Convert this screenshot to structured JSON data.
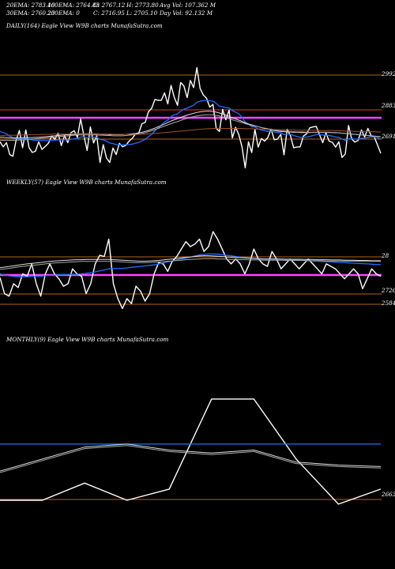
{
  "header": {
    "ema20": "20EMA: 2783.46",
    "ema100": "100EMA: 2764.83",
    "open": "O: 2767.12",
    "high": "H: 2773.80",
    "avgvol": "Avg Vol: 107.362  M",
    "ema30": "30EMA: 2760.23",
    "ema200": "200EMA: 0",
    "close": "C: 2716.95",
    "low": "L: 2705.10",
    "dayvol": "Day Vol: 92.132  M"
  },
  "chart_data": [
    {
      "type": "line",
      "label": "DAILY(164) Eagle   View  W9B charts MunafaSutra.com",
      "ticks": [
        "2992",
        "2883",
        "2691"
      ],
      "series": [
        {
          "name": "price",
          "color": "#ffffff",
          "values": [
            2755,
            2738,
            2752,
            2712,
            2706,
            2760,
            2793,
            2735,
            2795,
            2735,
            2719,
            2723,
            2755,
            2729,
            2739,
            2750,
            2774,
            2763,
            2784,
            2742,
            2776,
            2752,
            2786,
            2792,
            2770,
            2832,
            2775,
            2726,
            2805,
            2751,
            2775,
            2685,
            2745,
            2700,
            2685,
            2734,
            2712,
            2750,
            2738,
            2743,
            2757,
            2767,
            2781,
            2784,
            2816,
            2820,
            2856,
            2868,
            2898,
            2895,
            2895,
            2920,
            2883,
            2945,
            2905,
            2878,
            2955,
            2943,
            2904,
            2962,
            2938,
            3005,
            2935,
            2913,
            2902,
            2872,
            2881,
            2800,
            2790,
            2864,
            2829,
            2862,
            2768,
            2804,
            2779,
            2737,
            2667,
            2755,
            2719,
            2797,
            2737,
            2766,
            2757,
            2769,
            2798,
            2762,
            2764,
            2780,
            2711,
            2797,
            2776,
            2735,
            2737,
            2738,
            2774,
            2782,
            2802,
            2805,
            2807,
            2779,
            2752,
            2785,
            2757,
            2753,
            2737,
            2755,
            2702,
            2714,
            2810,
            2764,
            2754,
            2760,
            2795,
            2771,
            2800,
            2776,
            2771,
            2744,
            2716
          ]
        },
        {
          "name": "ema-blue",
          "color": "#1f6fff",
          "values": [
            2790,
            2786,
            2782,
            2775,
            2768,
            2766,
            2767,
            2764,
            2766,
            2764,
            2761,
            2760,
            2760,
            2759,
            2759,
            2759,
            2760,
            2760,
            2762,
            2761,
            2762,
            2761,
            2763,
            2765,
            2766,
            2771,
            2771,
            2768,
            2771,
            2770,
            2770,
            2763,
            2762,
            2757,
            2751,
            2749,
            2745,
            2745,
            2745,
            2745,
            2746,
            2747,
            2750,
            2753,
            2758,
            2763,
            2772,
            2780,
            2792,
            2802,
            2811,
            2822,
            2828,
            2840,
            2846,
            2849,
            2858,
            2865,
            2868,
            2874,
            2878,
            2888,
            2892,
            2894,
            2895,
            2893,
            2892,
            2884,
            2875,
            2874,
            2870,
            2869,
            2860,
            2855,
            2849,
            2838,
            2821,
            2815,
            2806,
            2805,
            2798,
            2795,
            2792,
            2790,
            2791,
            2788,
            2786,
            2786,
            2779,
            2781,
            2780,
            2776,
            2773,
            2770,
            2770,
            2771,
            2773,
            2776,
            2779,
            2779,
            2777,
            2778,
            2776,
            2774,
            2771,
            2770,
            2764,
            2760,
            2765,
            2765,
            2764,
            2764,
            2767,
            2767,
            2770,
            2771,
            2771,
            2769,
            2764
          ]
        },
        {
          "name": "ema-white-1",
          "color": "#dddddd",
          "values": [
            2770,
            2770,
            2769,
            2769,
            2768,
            2768,
            2768,
            2768,
            2768,
            2769,
            2769,
            2770,
            2770,
            2771,
            2772,
            2773,
            2774,
            2775,
            2776,
            2777,
            2778,
            2779,
            2779,
            2780,
            2781,
            2782,
            2782,
            2782,
            2782,
            2782,
            2781,
            2781,
            2780,
            2780,
            2779,
            2779,
            2779,
            2779,
            2779,
            2780,
            2781,
            2782,
            2783,
            2785,
            2787,
            2790,
            2793,
            2797,
            2801,
            2806,
            2810,
            2815,
            2820,
            2825,
            2829,
            2833,
            2837,
            2841,
            2845,
            2848,
            2851,
            2854,
            2856,
            2857,
            2858,
            2858,
            2857,
            2855,
            2852,
            2849,
            2845,
            2841,
            2836,
            2832,
            2828,
            2824,
            2819,
            2815,
            2812,
            2809,
            2806,
            2803,
            2800,
            2797,
            2795,
            2793,
            2791,
            2790,
            2789,
            2788,
            2788,
            2787,
            2787,
            2786,
            2786,
            2786,
            2786,
            2787,
            2787,
            2787,
            2787,
            2787,
            2787,
            2786,
            2786,
            2785,
            2784,
            2783,
            2782,
            2781,
            2780,
            2779,
            2778,
            2777,
            2776,
            2775,
            2774,
            2773,
            2772
          ]
        },
        {
          "name": "ema-white-2",
          "color": "#aaaaaa",
          "values": [
            2760,
            2760,
            2760,
            2760,
            2760,
            2760,
            2761,
            2761,
            2762,
            2763,
            2764,
            2765,
            2766,
            2767,
            2768,
            2769,
            2770,
            2771,
            2772,
            2773,
            2774,
            2775,
            2776,
            2777,
            2778,
            2778,
            2778,
            2778,
            2778,
            2778,
            2778,
            2777,
            2777,
            2776,
            2776,
            2775,
            2775,
            2775,
            2775,
            2776,
            2777,
            2778,
            2779,
            2781,
            2783,
            2786,
            2789,
            2792,
            2796,
            2800,
            2804,
            2808,
            2812,
            2816,
            2820,
            2823,
            2827,
            2831,
            2834,
            2837,
            2840,
            2842,
            2844,
            2845,
            2846,
            2846,
            2846,
            2844,
            2842,
            2839,
            2836,
            2833,
            2829,
            2826,
            2823,
            2820,
            2816,
            2813,
            2810,
            2808,
            2806,
            2803,
            2801,
            2799,
            2797,
            2795,
            2793,
            2792,
            2791,
            2790,
            2789,
            2789,
            2788,
            2788,
            2788,
            2787,
            2787,
            2787,
            2787,
            2787,
            2787,
            2787,
            2786,
            2786,
            2785,
            2785,
            2784,
            2783,
            2782,
            2781,
            2780,
            2779,
            2778,
            2777,
            2776,
            2775,
            2774,
            2773,
            2772
          ]
        },
        {
          "name": "ema-brown",
          "color": "#a0522d",
          "values": [
            2775,
            2776,
            2777,
            2777,
            2777,
            2777,
            2778,
            2778,
            2778,
            2779,
            2779,
            2779,
            2779,
            2780,
            2780,
            2780,
            2780,
            2781,
            2781,
            2781,
            2781,
            2781,
            2782,
            2782,
            2782,
            2782,
            2782,
            2782,
            2782,
            2782,
            2782,
            2781,
            2781,
            2781,
            2781,
            2780,
            2780,
            2780,
            2780,
            2780,
            2780,
            2780,
            2780,
            2780,
            2781,
            2781,
            2782,
            2782,
            2783,
            2784,
            2785,
            2786,
            2787,
            2788,
            2789,
            2790,
            2791,
            2792,
            2793,
            2794,
            2795,
            2796,
            2797,
            2798,
            2799,
            2799,
            2800,
            2800,
            2800,
            2800,
            2800,
            2800,
            2800,
            2800,
            2800,
            2800,
            2799,
            2799,
            2799,
            2798,
            2798,
            2798,
            2797,
            2797,
            2797,
            2796,
            2796,
            2796,
            2795,
            2795,
            2795,
            2795,
            2794,
            2794,
            2794,
            2794,
            2794,
            2794,
            2794,
            2793,
            2793,
            2793,
            2793,
            2793,
            2792,
            2792,
            2792,
            2791,
            2791,
            2791,
            2790,
            2790,
            2790,
            2790,
            2789,
            2789,
            2789,
            2788,
            2788
          ]
        }
      ]
    },
    {
      "type": "line",
      "label": "WEEKLY(57) Eagle   View  W9B charts MunafaSutra.com",
      "ticks": [
        "28",
        "2726",
        "2584"
      ],
      "series": [
        {
          "name": "price",
          "color": "#ffffff",
          "values": [
            2685,
            2620,
            2610,
            2660,
            2645,
            2700,
            2690,
            2740,
            2660,
            2610,
            2700,
            2740,
            2700,
            2680,
            2650,
            2660,
            2720,
            2700,
            2690,
            2620,
            2660,
            2740,
            2775,
            2770,
            2840,
            2660,
            2600,
            2560,
            2600,
            2580,
            2650,
            2630,
            2590,
            2620,
            2700,
            2745,
            2740,
            2710,
            2750,
            2770,
            2800,
            2830,
            2810,
            2820,
            2840,
            2790,
            2810,
            2870,
            2840,
            2800,
            2760,
            2740,
            2760,
            2740,
            2700,
            2740,
            2800,
            2760,
            2740,
            2730,
            2790,
            2760,
            2720,
            2740,
            2760,
            2740,
            2720,
            2740,
            2760,
            2740,
            2720,
            2700,
            2740,
            2730,
            2720,
            2700,
            2680,
            2700,
            2720,
            2700,
            2640,
            2680,
            2720,
            2700,
            2690
          ]
        },
        {
          "name": "ema-blue",
          "color": "#1f6fff",
          "values": [
            2700,
            2695,
            2692,
            2690,
            2688,
            2688,
            2688,
            2690,
            2690,
            2690,
            2692,
            2694,
            2695,
            2696,
            2696,
            2697,
            2698,
            2698,
            2700,
            2702,
            2704,
            2708,
            2712,
            2716,
            2720,
            2722,
            2722,
            2722,
            2724,
            2726,
            2728,
            2730,
            2732,
            2734,
            2736,
            2740,
            2744,
            2748,
            2752,
            2756,
            2760,
            2764,
            2768,
            2772,
            2776,
            2778,
            2780,
            2780,
            2779,
            2777,
            2775,
            2773,
            2770,
            2767,
            2765,
            2763,
            2762,
            2761,
            2760,
            2760,
            2760,
            2760,
            2759,
            2758,
            2757,
            2756,
            2755,
            2754,
            2753,
            2752,
            2751,
            2750,
            2749,
            2748,
            2747,
            2746,
            2745,
            2744,
            2743,
            2742,
            2741,
            2740,
            2739,
            2738,
            2737
          ]
        },
        {
          "name": "ema-white-1",
          "color": "#dddddd",
          "values": [
            2725,
            2727,
            2730,
            2732,
            2735,
            2738,
            2740,
            2742,
            2744,
            2746,
            2748,
            2750,
            2752,
            2753,
            2754,
            2755,
            2756,
            2757,
            2757,
            2758,
            2758,
            2758,
            2758,
            2758,
            2758,
            2757,
            2756,
            2755,
            2754,
            2753,
            2752,
            2751,
            2751,
            2752,
            2753,
            2754,
            2756,
            2758,
            2760,
            2762,
            2764,
            2766,
            2768,
            2770,
            2772,
            2773,
            2773,
            2772,
            2771,
            2770,
            2768,
            2767,
            2766,
            2765,
            2764,
            2763,
            2762,
            2761,
            2760,
            2760,
            2760,
            2760,
            2760,
            2759,
            2759,
            2759,
            2759,
            2758,
            2758,
            2758,
            2757,
            2757,
            2757,
            2756,
            2756,
            2756,
            2755,
            2755,
            2755,
            2754,
            2754,
            2754,
            2753,
            2753,
            2753
          ]
        },
        {
          "name": "ema-white-2",
          "color": "#aaaaaa",
          "values": [
            2718,
            2720,
            2722,
            2725,
            2728,
            2730,
            2732,
            2734,
            2736,
            2738,
            2740,
            2742,
            2744,
            2745,
            2746,
            2747,
            2748,
            2749,
            2750,
            2750,
            2750,
            2750,
            2750,
            2750,
            2750,
            2750,
            2749,
            2748,
            2747,
            2746,
            2745,
            2745,
            2745,
            2746,
            2747,
            2748,
            2749,
            2751,
            2752,
            2754,
            2755,
            2757,
            2758,
            2759,
            2760,
            2761,
            2761,
            2761,
            2760,
            2760,
            2759,
            2758,
            2758,
            2757,
            2757,
            2756,
            2756,
            2756,
            2755,
            2755,
            2755,
            2755,
            2755,
            2754,
            2754,
            2754,
            2754,
            2754,
            2753,
            2753,
            2753,
            2753,
            2752,
            2752,
            2752,
            2752,
            2751,
            2751,
            2751,
            2751,
            2750,
            2750,
            2750,
            2750,
            2750
          ]
        }
      ]
    },
    {
      "type": "line",
      "label": "MONTHLY(9) Eagle   View  W9B charts MunafaSutra.com",
      "ticks": [
        "2663"
      ],
      "series": [
        {
          "name": "price",
          "color": "#ffffff",
          "values": [
            2663,
            2663,
            2720,
            2663,
            2700,
            3000,
            3000,
            2800,
            2650,
            2700
          ]
        },
        {
          "name": "ema-blue",
          "color": "#1f6fff",
          "values": [
            2850,
            2850,
            2850,
            2850,
            2850,
            2850,
            2850,
            2850,
            2850,
            2850
          ]
        },
        {
          "name": "ema-white-1",
          "color": "#dddddd",
          "values": [
            2760,
            2800,
            2840,
            2850,
            2830,
            2820,
            2830,
            2790,
            2780,
            2775
          ]
        },
        {
          "name": "ema-white-2",
          "color": "#aaaaaa",
          "values": [
            2755,
            2795,
            2835,
            2845,
            2825,
            2815,
            2825,
            2785,
            2775,
            2770
          ]
        }
      ]
    }
  ]
}
